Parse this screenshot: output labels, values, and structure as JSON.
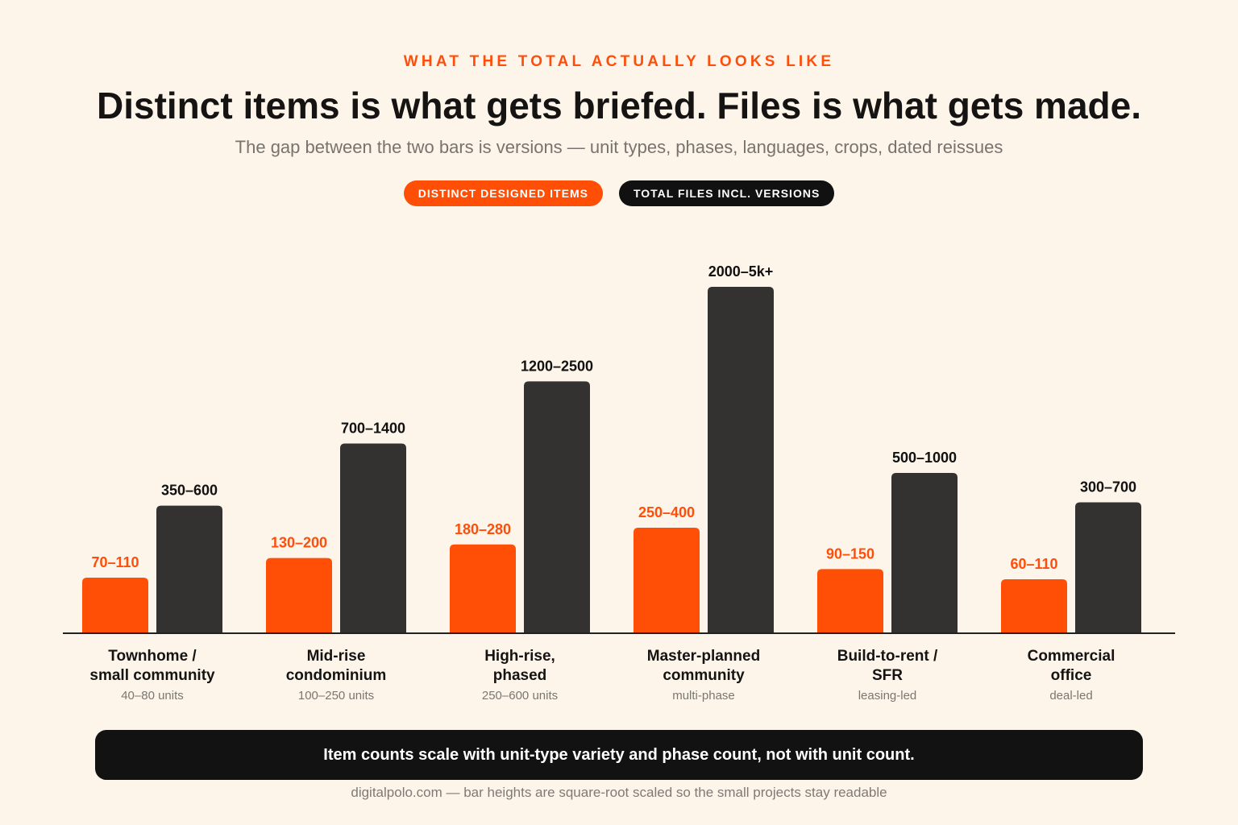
{
  "header": {
    "eyebrow": "WHAT THE TOTAL ACTUALLY LOOKS LIKE",
    "title": "Distinct items is what gets briefed. Files is what gets made.",
    "subtitle": "The gap between the two bars is versions — unit types, phases, languages, crops, dated reissues"
  },
  "legend": {
    "distinct_label": "DISTINCT DESIGNED ITEMS",
    "total_label": "TOTAL FILES INCL. VERSIONS"
  },
  "colors": {
    "distinct": "#ff4e05",
    "total": "#343230",
    "distinct_text": "#ff4e0a",
    "total_text": "#111111",
    "axis": "#222222",
    "category_text": "#151413",
    "sublabel_text": "#7a7671"
  },
  "chart_data": {
    "type": "bar",
    "scale": "sqrt",
    "categories": [
      "Townhome / small community",
      "Mid-rise condominium",
      "High-rise, phased",
      "Master-planned community",
      "Build-to-rent / SFR",
      "Commercial office"
    ],
    "category_lines": [
      [
        "Townhome /",
        "small community"
      ],
      [
        "Mid-rise",
        "condominium"
      ],
      [
        "High-rise,",
        "phased"
      ],
      [
        "Master-planned",
        "community"
      ],
      [
        "Build-to-rent /",
        "SFR"
      ],
      [
        "Commercial",
        "office"
      ]
    ],
    "sublabels": [
      "40–80 units",
      "100–250 units",
      "250–600 units",
      "multi-phase",
      "leasing-led",
      "deal-led"
    ],
    "series": [
      {
        "name": "Distinct designed items",
        "labels": [
          "70–110",
          "130–200",
          "180–280",
          "250–400",
          "90–150",
          "60–110"
        ],
        "values": [
          90,
          165,
          230,
          325,
          120,
          85
        ]
      },
      {
        "name": "Total files incl. versions",
        "labels": [
          "350–600",
          "700–1400",
          "1200–2500",
          "2000–5k+",
          "500–1000",
          "300–700"
        ],
        "values": [
          475,
          1050,
          1850,
          3500,
          750,
          500
        ]
      }
    ]
  },
  "note": "Item counts scale with unit-type variety and phase count, not with unit count.",
  "footer": "digitalpolo.com — bar heights are square-root scaled so the small projects stay readable"
}
